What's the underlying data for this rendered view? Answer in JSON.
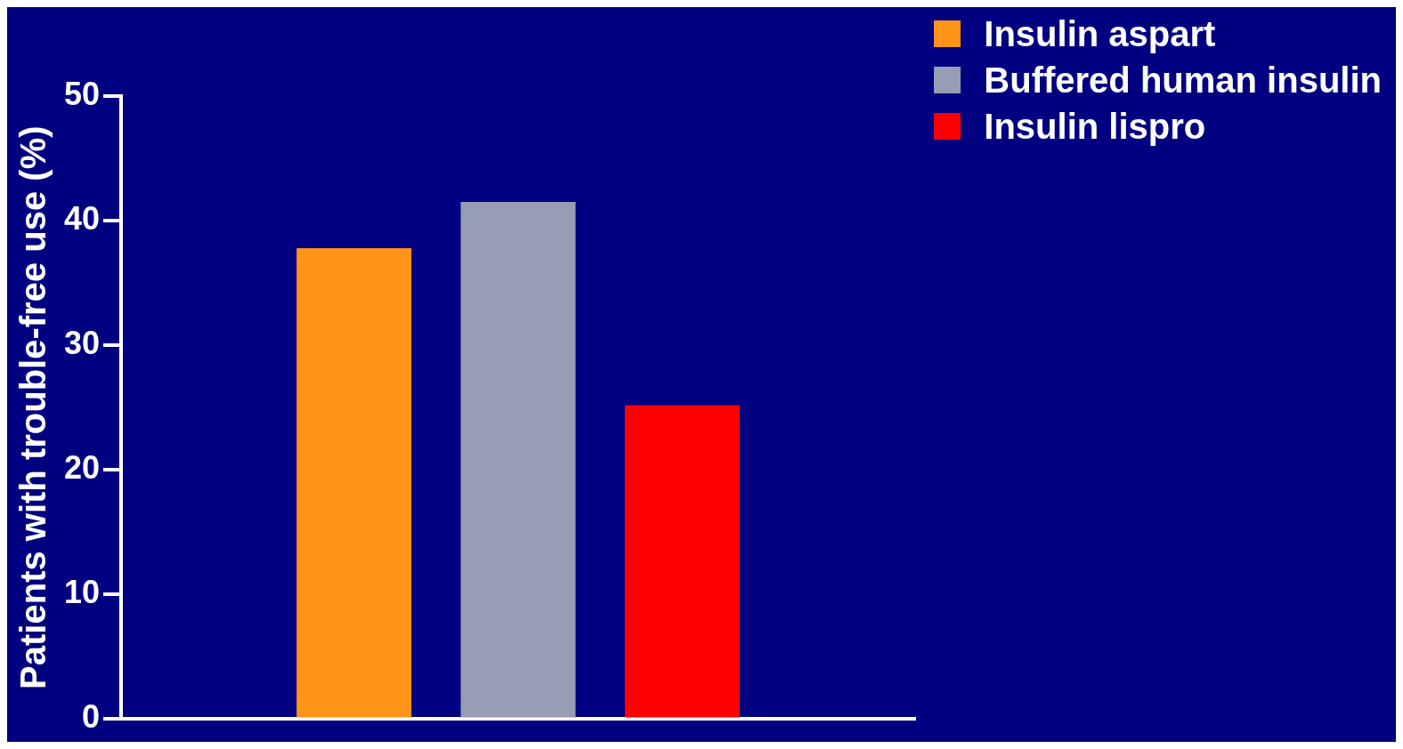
{
  "chart_data": {
    "type": "bar",
    "ylabel": "Patients with trouble-free use (%)",
    "categories": [
      null
    ],
    "series": [
      {
        "name": "Insulin aspart",
        "color": "#ff9419",
        "values": [
          37.8
        ]
      },
      {
        "name": "Buffered human insulin",
        "color": "#969db4",
        "values": [
          41.5
        ]
      },
      {
        "name": "Insulin lispro",
        "color": "#ff0000",
        "values": [
          25.2
        ]
      }
    ],
    "ylim": [
      0,
      50
    ],
    "yticks": [
      0,
      10,
      20,
      30,
      40,
      50
    ],
    "grid": false,
    "legend": "top right"
  }
}
